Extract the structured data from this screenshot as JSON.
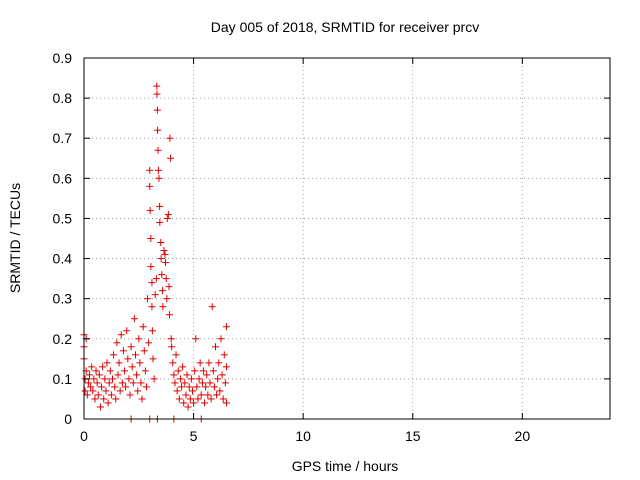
{
  "chart_data": {
    "type": "scatter",
    "title": "Day 005 of 2018, SRMTID for receiver prcv",
    "xlabel": "GPS time / hours",
    "ylabel": "SRMTID / TECUs",
    "xlim": [
      0,
      24
    ],
    "ylim": [
      0,
      0.9
    ],
    "xticks": [
      0,
      5,
      10,
      15,
      20
    ],
    "yticks": [
      0,
      0.1,
      0.2,
      0.3,
      0.4,
      0.5,
      0.6,
      0.7,
      0.8,
      0.9
    ],
    "xtick_labels": [
      "0",
      "5",
      "10",
      "15",
      "20"
    ],
    "ytick_labels": [
      "0",
      "0.1",
      "0.2",
      "0.3",
      "0.4",
      "0.5",
      "0.6",
      "0.7",
      "0.8",
      "0.9"
    ],
    "grid": true,
    "marker": "+",
    "color": "#e00000",
    "series": [
      {
        "name": "SRMTID",
        "points": [
          [
            0.0,
            0.21
          ],
          [
            0.0,
            0.18
          ],
          [
            0.0,
            0.15
          ],
          [
            0.05,
            0.1
          ],
          [
            0.05,
            0.07
          ],
          [
            0.1,
            0.12
          ],
          [
            0.1,
            0.2
          ],
          [
            0.15,
            0.06
          ],
          [
            0.2,
            0.09
          ],
          [
            0.25,
            0.11
          ],
          [
            0.3,
            0.08
          ],
          [
            0.35,
            0.13
          ],
          [
            0.4,
            0.07
          ],
          [
            0.45,
            0.1
          ],
          [
            0.5,
            0.05
          ],
          [
            0.55,
            0.12
          ],
          [
            0.6,
            0.09
          ],
          [
            0.65,
            0.06
          ],
          [
            0.7,
            0.11
          ],
          [
            0.75,
            0.03
          ],
          [
            0.8,
            0.08
          ],
          [
            0.85,
            0.13
          ],
          [
            0.9,
            0.05
          ],
          [
            0.95,
            0.1
          ],
          [
            1.0,
            0.07
          ],
          [
            1.05,
            0.14
          ],
          [
            1.1,
            0.04
          ],
          [
            1.15,
            0.09
          ],
          [
            1.2,
            0.12
          ],
          [
            1.25,
            0.06
          ],
          [
            1.3,
            0.1
          ],
          [
            1.35,
            0.16
          ],
          [
            1.4,
            0.08
          ],
          [
            1.45,
            0.05
          ],
          [
            1.5,
            0.19
          ],
          [
            1.55,
            0.11
          ],
          [
            1.6,
            0.14
          ],
          [
            1.65,
            0.07
          ],
          [
            1.7,
            0.21
          ],
          [
            1.75,
            0.09
          ],
          [
            1.8,
            0.17
          ],
          [
            1.85,
            0.12
          ],
          [
            1.9,
            0.08
          ],
          [
            1.95,
            0.22
          ],
          [
            2.0,
            0.15
          ],
          [
            2.05,
            0.1
          ],
          [
            2.1,
            0.06
          ],
          [
            2.15,
            0.18
          ],
          [
            2.2,
            0.13
          ],
          [
            2.25,
            0.09
          ],
          [
            2.3,
            0.25
          ],
          [
            2.35,
            0.16
          ],
          [
            2.4,
            0.11
          ],
          [
            2.45,
            0.07
          ],
          [
            2.5,
            0.2
          ],
          [
            2.55,
            0.14
          ],
          [
            2.6,
            0.09
          ],
          [
            2.65,
            0.05
          ],
          [
            2.7,
            0.23
          ],
          [
            2.75,
            0.17
          ],
          [
            2.8,
            0.12
          ],
          [
            2.85,
            0.08
          ],
          [
            2.9,
            0.3
          ],
          [
            2.95,
            0.19
          ],
          [
            3.0,
            0.62
          ],
          [
            3.0,
            0.58
          ],
          [
            3.02,
            0.52
          ],
          [
            3.05,
            0.45
          ],
          [
            3.05,
            0.38
          ],
          [
            3.1,
            0.34
          ],
          [
            3.1,
            0.28
          ],
          [
            3.12,
            0.22
          ],
          [
            3.15,
            0.15
          ],
          [
            3.2,
            0.1
          ],
          [
            3.25,
            0.31
          ],
          [
            3.3,
            0.35
          ],
          [
            3.32,
            0.83
          ],
          [
            3.33,
            0.81
          ],
          [
            3.35,
            0.77
          ],
          [
            3.36,
            0.72
          ],
          [
            3.38,
            0.67
          ],
          [
            3.4,
            0.62
          ],
          [
            3.42,
            0.6
          ],
          [
            3.45,
            0.53
          ],
          [
            3.46,
            0.49
          ],
          [
            3.5,
            0.44
          ],
          [
            3.52,
            0.4
          ],
          [
            3.55,
            0.36
          ],
          [
            3.58,
            0.32
          ],
          [
            3.6,
            0.28
          ],
          [
            3.65,
            0.42
          ],
          [
            3.7,
            0.41
          ],
          [
            3.72,
            0.39
          ],
          [
            3.75,
            0.35
          ],
          [
            3.78,
            0.3
          ],
          [
            3.8,
            0.5
          ],
          [
            3.85,
            0.51
          ],
          [
            3.88,
            0.33
          ],
          [
            3.9,
            0.26
          ],
          [
            3.92,
            0.7
          ],
          [
            3.95,
            0.65
          ],
          [
            3.98,
            0.2
          ],
          [
            4.0,
            0.18
          ],
          [
            4.05,
            0.14
          ],
          [
            4.1,
            0.11
          ],
          [
            4.15,
            0.09
          ],
          [
            4.2,
            0.16
          ],
          [
            4.25,
            0.07
          ],
          [
            4.3,
            0.12
          ],
          [
            4.35,
            0.05
          ],
          [
            4.4,
            0.1
          ],
          [
            4.45,
            0.08
          ],
          [
            4.5,
            0.13
          ],
          [
            4.55,
            0.04
          ],
          [
            4.6,
            0.09
          ],
          [
            4.65,
            0.06
          ],
          [
            4.7,
            0.11
          ],
          [
            4.75,
            0.03
          ],
          [
            4.8,
            0.08
          ],
          [
            4.85,
            0.05
          ],
          [
            4.9,
            0.1
          ],
          [
            4.95,
            0.07
          ],
          [
            5.0,
            0.04
          ],
          [
            5.05,
            0.12
          ],
          [
            5.1,
            0.2
          ],
          [
            5.15,
            0.08
          ],
          [
            5.2,
            0.05
          ],
          [
            5.25,
            0.1
          ],
          [
            5.3,
            0.14
          ],
          [
            5.35,
            0.06
          ],
          [
            5.4,
            0.09
          ],
          [
            5.45,
            0.12
          ],
          [
            5.5,
            0.04
          ],
          [
            5.55,
            0.08
          ],
          [
            5.6,
            0.11
          ],
          [
            5.65,
            0.06
          ],
          [
            5.7,
            0.14
          ],
          [
            5.75,
            0.09
          ],
          [
            5.8,
            0.05
          ],
          [
            5.85,
            0.28
          ],
          [
            5.9,
            0.12
          ],
          [
            5.95,
            0.08
          ],
          [
            6.0,
            0.18
          ],
          [
            6.05,
            0.06
          ],
          [
            6.1,
            0.1
          ],
          [
            6.15,
            0.14
          ],
          [
            6.2,
            0.07
          ],
          [
            6.25,
            0.2
          ],
          [
            6.3,
            0.11
          ],
          [
            6.35,
            0.05
          ],
          [
            6.4,
            0.16
          ],
          [
            6.45,
            0.09
          ],
          [
            6.5,
            0.23
          ],
          [
            6.5,
            0.13
          ],
          [
            6.5,
            0.04
          ],
          [
            2.15,
            0.0
          ],
          [
            3.0,
            0.0
          ],
          [
            3.35,
            0.0
          ],
          [
            4.1,
            0.0
          ],
          [
            5.35,
            0.0
          ]
        ]
      }
    ]
  }
}
